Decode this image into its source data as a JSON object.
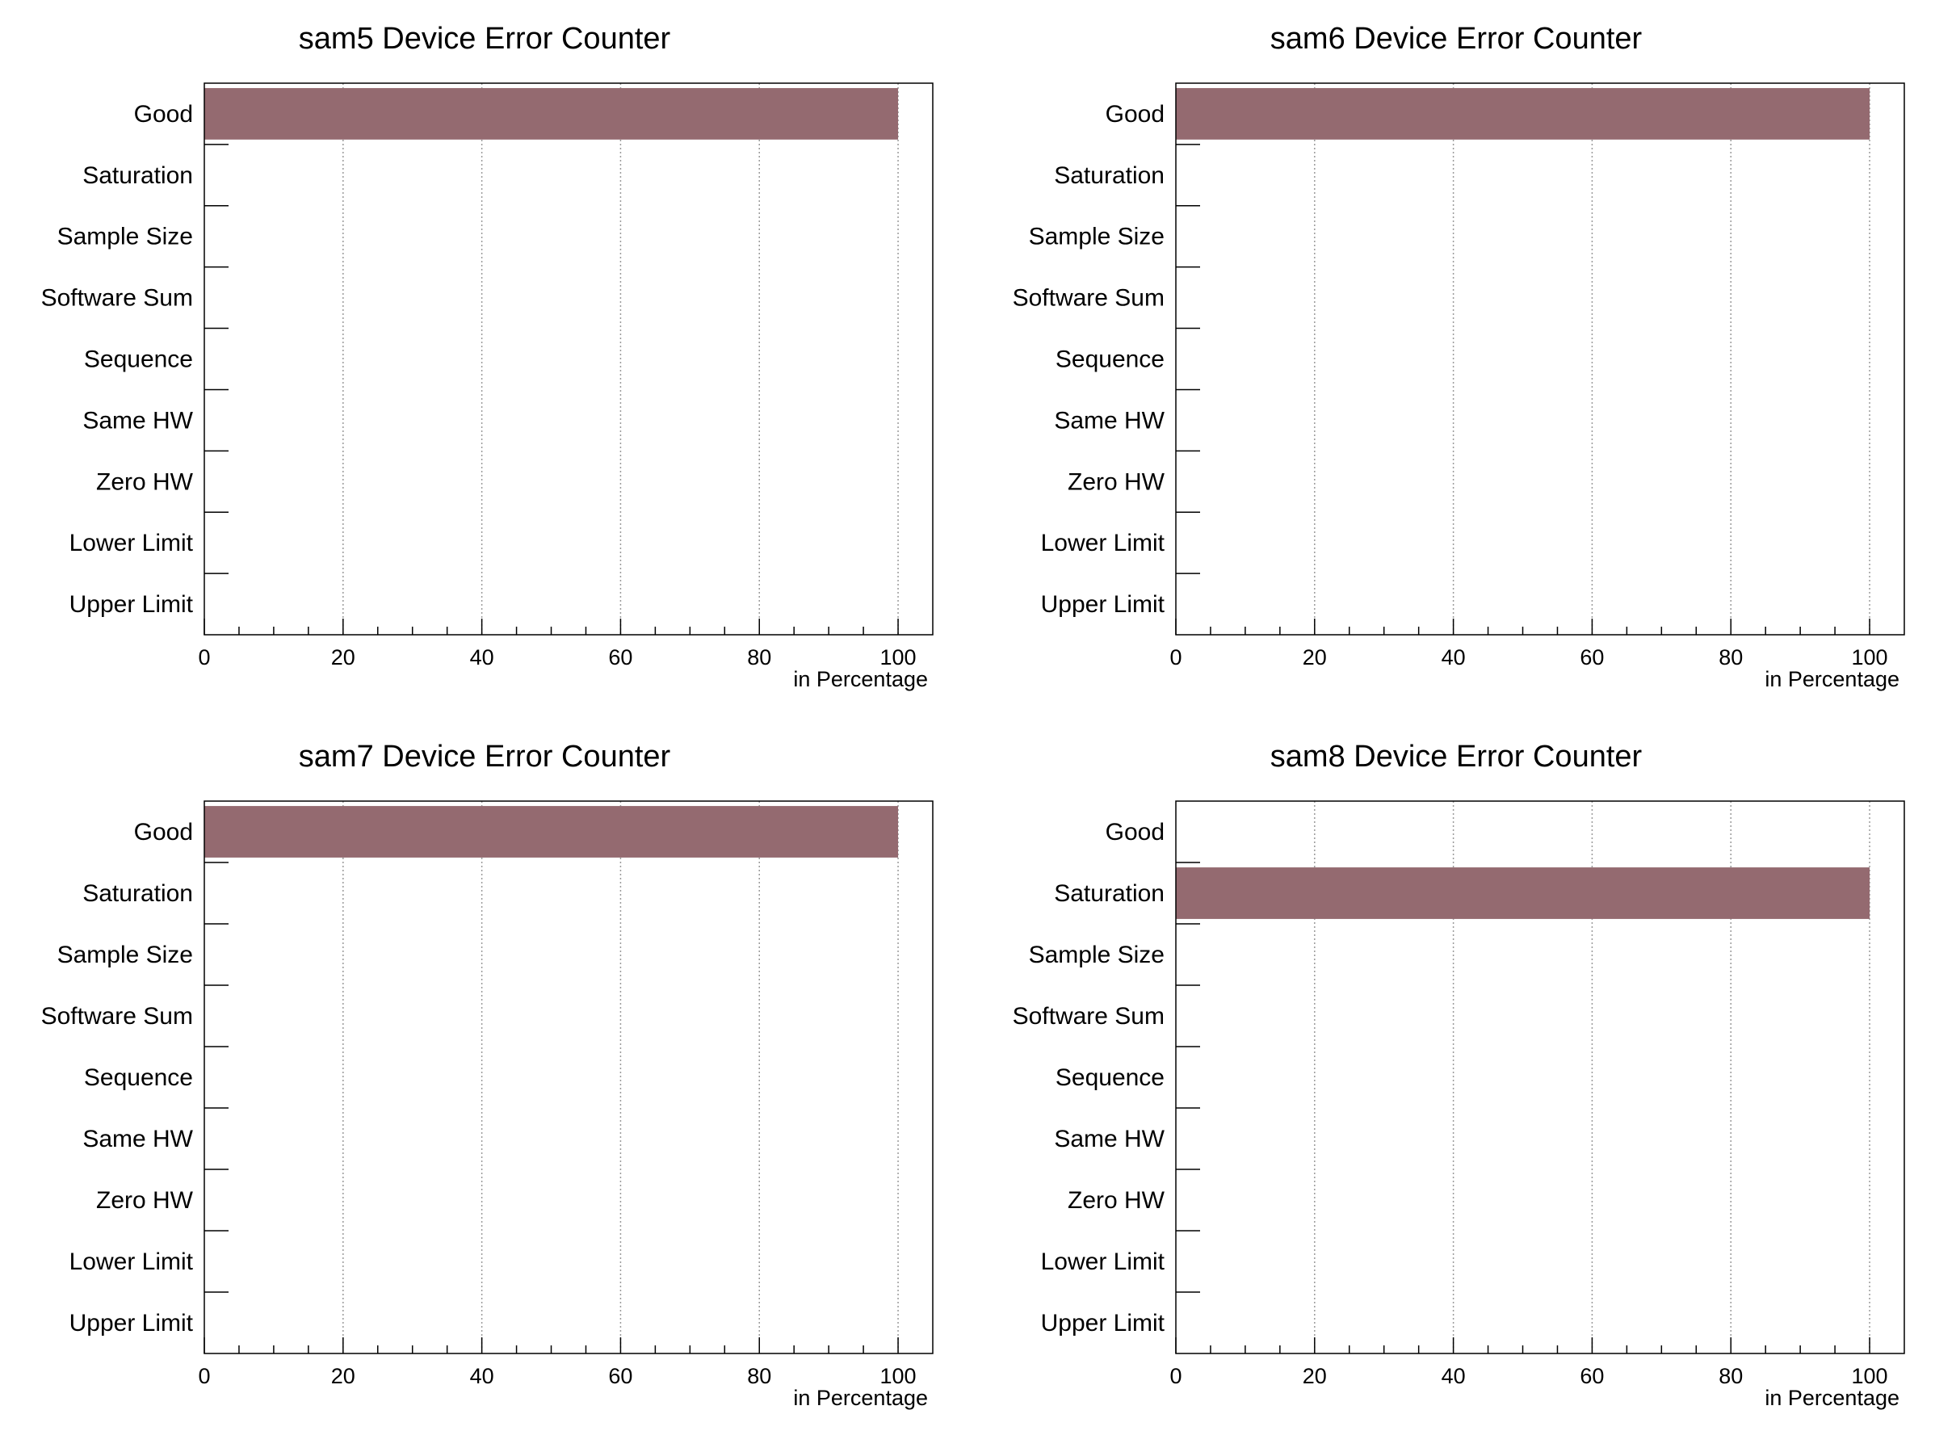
{
  "colors": {
    "bar": "#946a70",
    "frame": "#000000",
    "grid": "#9a9a9a",
    "background": "#ffffff"
  },
  "chart_data": [
    {
      "type": "bar",
      "orientation": "horizontal",
      "title": "sam5 Device  Error Counter",
      "xlabel": "in Percentage",
      "ylabel": "",
      "categories": [
        "Good",
        "Saturation",
        "Sample Size",
        "Software Sum",
        "Sequence",
        "Same HW",
        "Zero HW",
        "Lower Limit",
        "Upper Limit"
      ],
      "values": [
        100,
        0,
        0,
        0,
        0,
        0,
        0,
        0,
        0
      ],
      "xlim": [
        0,
        105
      ],
      "xticks": [
        0,
        20,
        40,
        60,
        80,
        100
      ],
      "grid": "vertical dotted"
    },
    {
      "type": "bar",
      "orientation": "horizontal",
      "title": "sam6 Device  Error Counter",
      "xlabel": "in Percentage",
      "ylabel": "",
      "categories": [
        "Good",
        "Saturation",
        "Sample Size",
        "Software Sum",
        "Sequence",
        "Same HW",
        "Zero HW",
        "Lower Limit",
        "Upper Limit"
      ],
      "values": [
        100,
        0,
        0,
        0,
        0,
        0,
        0,
        0,
        0
      ],
      "xlim": [
        0,
        105
      ],
      "xticks": [
        0,
        20,
        40,
        60,
        80,
        100
      ],
      "grid": "vertical dotted"
    },
    {
      "type": "bar",
      "orientation": "horizontal",
      "title": "sam7 Device  Error Counter",
      "xlabel": "in Percentage",
      "ylabel": "",
      "categories": [
        "Good",
        "Saturation",
        "Sample Size",
        "Software Sum",
        "Sequence",
        "Same HW",
        "Zero HW",
        "Lower Limit",
        "Upper Limit"
      ],
      "values": [
        100,
        0,
        0,
        0,
        0,
        0,
        0,
        0,
        0
      ],
      "xlim": [
        0,
        105
      ],
      "xticks": [
        0,
        20,
        40,
        60,
        80,
        100
      ],
      "grid": "vertical dotted"
    },
    {
      "type": "bar",
      "orientation": "horizontal",
      "title": "sam8 Device  Error Counter",
      "xlabel": "in Percentage",
      "ylabel": "",
      "categories": [
        "Good",
        "Saturation",
        "Sample Size",
        "Software Sum",
        "Sequence",
        "Same HW",
        "Zero HW",
        "Lower Limit",
        "Upper Limit"
      ],
      "values": [
        0,
        100,
        0,
        0,
        0,
        0,
        0,
        0,
        0
      ],
      "xlim": [
        0,
        105
      ],
      "xticks": [
        0,
        20,
        40,
        60,
        80,
        100
      ],
      "grid": "vertical dotted"
    }
  ]
}
